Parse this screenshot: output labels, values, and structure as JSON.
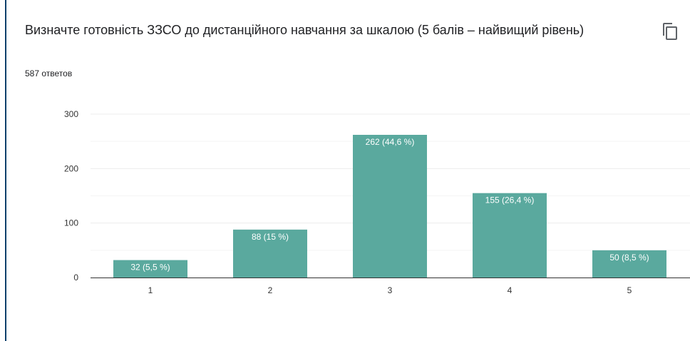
{
  "header": {
    "title": "Визначте готовність ЗЗСО до дистанційного навчання за шкалою (5 балів – найвищий рівень)",
    "response_count": "587 ответов",
    "copy_icon": "copy-icon"
  },
  "colors": {
    "bar": "#5aa99e",
    "grid": "#ececec",
    "axis": "#333333",
    "frame": "#0b3f6b"
  },
  "chart_data": {
    "type": "bar",
    "title": "Визначте готовність ЗЗСО до дистанційного навчання за шкалою (5 балів – найвищий рівень)",
    "xlabel": "",
    "ylabel": "",
    "categories": [
      "1",
      "2",
      "3",
      "4",
      "5"
    ],
    "values": [
      32,
      88,
      262,
      155,
      50
    ],
    "data_labels": [
      "32 (5,5 %)",
      "88 (15 %)",
      "262 (44,6 %)",
      "155 (26,4 %)",
      "50 (8,5 %)"
    ],
    "y_ticks": [
      0,
      100,
      200,
      300
    ],
    "ylim": [
      0,
      300
    ],
    "minor_gridlines": true,
    "legend": "none"
  }
}
